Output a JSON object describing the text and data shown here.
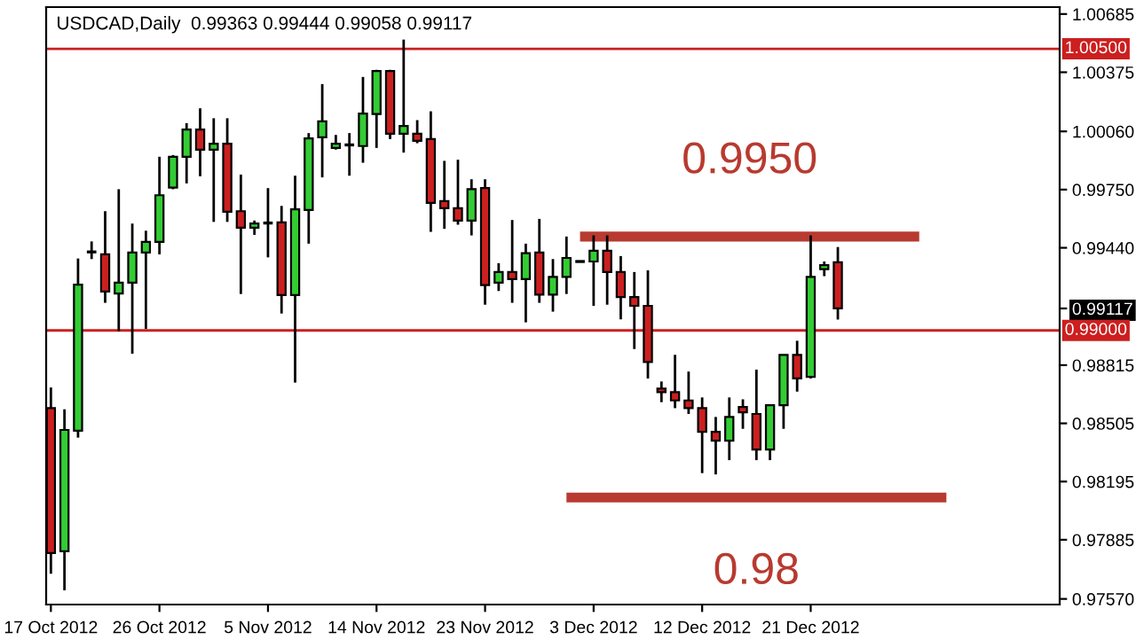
{
  "chart_data": {
    "type": "candlestick",
    "title": "USDCAD,Daily  0.99363 0.99444 0.99058 0.99117",
    "categories": [
      "17 Oct 2012",
      null,
      null,
      null,
      null,
      null,
      null,
      null,
      "26 Oct 2012",
      null,
      null,
      null,
      null,
      null,
      null,
      null,
      "5 Nov 2012",
      null,
      null,
      null,
      null,
      null,
      null,
      null,
      "14 Nov 2012",
      null,
      null,
      null,
      null,
      null,
      null,
      null,
      "23 Nov 2012",
      null,
      null,
      null,
      null,
      null,
      null,
      null,
      "3 Dec 2012",
      null,
      null,
      null,
      null,
      null,
      null,
      null,
      "12 Dec 2012",
      null,
      null,
      null,
      null,
      null,
      null,
      null,
      "21 Dec 2012",
      null,
      null,
      null,
      null,
      null,
      null,
      null,
      null,
      null,
      null,
      null,
      null,
      null,
      null,
      null,
      null,
      null,
      null
    ],
    "ohlc": [
      [
        0.98586,
        0.98696,
        0.97704,
        0.97814
      ],
      [
        0.97824,
        0.9858,
        0.97616,
        0.9847
      ],
      [
        0.98466,
        0.99383,
        0.98429,
        0.99244
      ],
      [
        0.99418,
        0.99474,
        0.9938,
        0.99418
      ],
      [
        0.99405,
        0.99635,
        0.99147,
        0.99207
      ],
      [
        0.99197,
        0.99752,
        0.98996,
        0.99254
      ],
      [
        0.99254,
        0.99569,
        0.98876,
        0.99415
      ],
      [
        0.99415,
        0.99531,
        0.99008,
        0.99471
      ],
      [
        0.99471,
        0.99925,
        0.99405,
        0.9972
      ],
      [
        0.99761,
        0.99934,
        0.99752,
        0.99925
      ],
      [
        0.99925,
        1.00104,
        0.99783,
        1.0007
      ],
      [
        1.0007,
        1.00183,
        0.99821,
        0.99963
      ],
      [
        0.99963,
        1.0013,
        0.99578,
        0.99994
      ],
      [
        0.99994,
        1.0013,
        0.99578,
        0.99632
      ],
      [
        0.99635,
        0.9983,
        0.99194,
        0.99547
      ],
      [
        0.99547,
        0.99585,
        0.99509,
        0.99569
      ],
      [
        0.99572,
        0.99758,
        0.99389,
        0.99572
      ],
      [
        0.99575,
        0.99663,
        0.9909,
        0.99188
      ],
      [
        0.99188,
        0.99824,
        0.98722,
        0.99645
      ],
      [
        0.99641,
        1.00051,
        0.99462,
        1.00023
      ],
      [
        1.00029,
        1.00312,
        0.99815,
        1.00114
      ],
      [
        0.99972,
        1.00041,
        0.99963,
        0.99994
      ],
      [
        0.99988,
        1.00051,
        0.99824,
        0.99988
      ],
      [
        0.99982,
        1.0035,
        0.99893,
        1.00155
      ],
      [
        1.00152,
        1.00388,
        0.99972,
        1.00382
      ],
      [
        1.00382,
        1.00388,
        1.00019,
        1.00048
      ],
      [
        1.00048,
        1.00549,
        0.99947,
        1.00089
      ],
      [
        1.00048,
        1.0012,
        0.99997,
        1.0001
      ],
      [
        1.00019,
        1.00167,
        0.99525,
        0.99679
      ],
      [
        0.99689,
        0.99903,
        0.99541,
        0.99651
      ],
      [
        0.99651,
        0.99909,
        0.99563,
        0.99585
      ],
      [
        0.99585,
        0.99805,
        0.99506,
        0.99752
      ],
      [
        0.99758,
        0.99805,
        0.99137,
        0.99241
      ],
      [
        0.99254,
        0.99358,
        0.9921,
        0.99311
      ],
      [
        0.99311,
        0.99588,
        0.99147,
        0.99273
      ],
      [
        0.99273,
        0.99462,
        0.99043,
        0.99411
      ],
      [
        0.99415,
        0.99594,
        0.99147,
        0.99191
      ],
      [
        0.99191,
        0.9938,
        0.991,
        0.99285
      ],
      [
        0.99285,
        0.995,
        0.99194,
        0.99386
      ],
      [
        0.99367,
        0.99367,
        0.99367,
        0.99367
      ],
      [
        0.99367,
        0.99506,
        0.99131,
        0.99424
      ],
      [
        0.99424,
        0.99506,
        0.99137,
        0.99311
      ],
      [
        0.99311,
        0.99396,
        0.99059,
        0.99178
      ],
      [
        0.99178,
        0.99311,
        0.98901,
        0.99131
      ],
      [
        0.99131,
        0.9932,
        0.98744,
        0.98832
      ],
      [
        0.9869,
        0.98728,
        0.98618,
        0.98671
      ],
      [
        0.98671,
        0.9887,
        0.98586,
        0.98627
      ],
      [
        0.98627,
        0.98781,
        0.98555,
        0.98586
      ],
      [
        0.98586,
        0.98643,
        0.9824,
        0.9846
      ],
      [
        0.9846,
        0.98539,
        0.98233,
        0.98413
      ],
      [
        0.98413,
        0.98643,
        0.98309,
        0.98539
      ],
      [
        0.98592,
        0.98633,
        0.98476,
        0.98564
      ],
      [
        0.98555,
        0.98791,
        0.98309,
        0.98366
      ],
      [
        0.98366,
        0.98602,
        0.98309,
        0.98602
      ],
      [
        0.98602,
        0.9887,
        0.98476,
        0.9887
      ],
      [
        0.9887,
        0.98945,
        0.98674,
        0.98744
      ],
      [
        0.98753,
        0.99506,
        0.98744,
        0.99285
      ],
      [
        0.99326,
        0.99367,
        0.99289,
        0.99348
      ],
      [
        0.99363,
        0.99444,
        0.99058,
        0.99117
      ],
      null,
      null,
      null,
      null,
      null,
      null,
      null,
      null,
      null,
      null,
      null,
      null,
      null,
      null,
      null,
      null
    ],
    "colors": [
      "#cc1f1f",
      "#33cc33",
      "#33cc33",
      "#000000",
      "#cc1f1f",
      "#33cc33",
      "#33cc33",
      "#33cc33",
      "#33cc33",
      "#33cc33",
      "#33cc33",
      "#cc1f1f",
      "#33cc33",
      "#cc1f1f",
      "#cc1f1f",
      "#33cc33",
      "#000000",
      "#cc1f1f",
      "#33cc33",
      "#33cc33",
      "#33cc33",
      "#33cc33",
      "#000000",
      "#33cc33",
      "#33cc33",
      "#cc1f1f",
      "#33cc33",
      "#cc1f1f",
      "#cc1f1f",
      "#cc1f1f",
      "#cc1f1f",
      "#33cc33",
      "#cc1f1f",
      "#33cc33",
      "#cc1f1f",
      "#33cc33",
      "#cc1f1f",
      "#33cc33",
      "#33cc33",
      "#000000",
      "#33cc33",
      "#cc1f1f",
      "#cc1f1f",
      "#cc1f1f",
      "#cc1f1f",
      "#cc1f1f",
      "#cc1f1f",
      "#cc1f1f",
      "#cc1f1f",
      "#cc1f1f",
      "#33cc33",
      "#cc1f1f",
      "#cc1f1f",
      "#33cc33",
      "#33cc33",
      "#cc1f1f",
      "#33cc33",
      "#33cc33",
      "#cc1f1f",
      null,
      null,
      null,
      null,
      null,
      null,
      null,
      null,
      null,
      null,
      null,
      null,
      null,
      null,
      null,
      null
    ],
    "series": [
      {
        "name": "0.9950",
        "type": "line",
        "color": "#b83a30",
        "values": [
          null,
          null,
          null,
          null,
          null,
          null,
          null,
          null,
          null,
          null,
          null,
          null,
          null,
          null,
          null,
          null,
          null,
          null,
          null,
          null,
          null,
          null,
          null,
          null,
          null,
          null,
          null,
          null,
          null,
          null,
          null,
          null,
          null,
          null,
          null,
          null,
          null,
          null,
          null,
          0.995,
          0.995,
          0.995,
          0.995,
          0.995,
          0.995,
          0.995,
          0.995,
          0.995,
          0.995,
          0.995,
          0.995,
          0.995,
          0.995,
          0.995,
          0.995,
          0.995,
          0.995,
          0.995,
          0.995,
          0.995,
          0.995,
          0.995,
          0.995,
          0.995,
          0.995,
          null,
          null,
          null,
          null,
          null,
          null,
          null,
          null,
          null,
          null
        ]
      },
      {
        "name": "0.98",
        "type": "line",
        "color": "#b83a30",
        "values": [
          null,
          null,
          null,
          null,
          null,
          null,
          null,
          null,
          null,
          null,
          null,
          null,
          null,
          null,
          null,
          null,
          null,
          null,
          null,
          null,
          null,
          null,
          null,
          null,
          null,
          null,
          null,
          null,
          null,
          null,
          null,
          null,
          null,
          null,
          null,
          null,
          null,
          null,
          0.9811,
          0.9811,
          0.9811,
          0.9811,
          0.9811,
          0.9811,
          0.9811,
          0.9811,
          0.9811,
          0.9811,
          0.9811,
          0.9811,
          0.9811,
          0.9811,
          0.9811,
          0.9811,
          0.9811,
          0.9811,
          0.9811,
          0.9811,
          0.9811,
          0.9811,
          0.9811,
          0.9811,
          0.9811,
          0.9811,
          0.9811,
          0.9811,
          0.9811,
          null,
          null,
          null,
          null,
          null,
          null,
          null,
          null
        ]
      }
    ],
    "ref_lines": [
      {
        "axis": "y",
        "value": 1.005,
        "label": "1.00500",
        "color": "#cc1f1f"
      },
      {
        "axis": "y",
        "value": 0.99,
        "label": "0.99000",
        "color": "#cc1f1f"
      }
    ],
    "ylim": [
      0.9754,
      1.00722
    ],
    "yticks": [
      {
        "value": 1.00685,
        "label": "1.00685"
      },
      {
        "value": 1.00375,
        "label": "1.00375"
      },
      {
        "value": 1.0006,
        "label": "1.00060"
      },
      {
        "value": 0.9975,
        "label": "0.99750"
      },
      {
        "value": 0.9944,
        "label": "0.99440"
      },
      {
        "value": 0.99117,
        "label": "0.99117"
      },
      {
        "value": 0.98815,
        "label": "0.98815"
      },
      {
        "value": 0.98505,
        "label": "0.98505"
      },
      {
        "value": 0.98195,
        "label": "0.98195"
      },
      {
        "value": 0.97885,
        "label": "0.97885"
      },
      {
        "value": 0.9757,
        "label": "0.97570"
      }
    ],
    "grid": false,
    "legend": false
  }
}
